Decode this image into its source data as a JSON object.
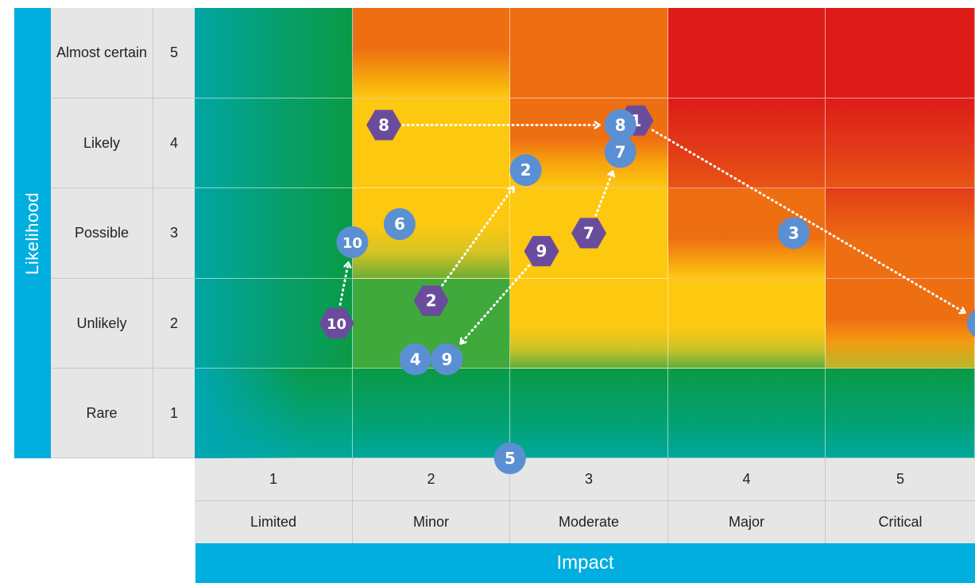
{
  "axes": {
    "likelihood_title": "Likelihood",
    "impact_title": "Impact",
    "rows": [
      {
        "score": "5",
        "label": "Almost certain"
      },
      {
        "score": "4",
        "label": "Likely"
      },
      {
        "score": "3",
        "label": "Possible"
      },
      {
        "score": "2",
        "label": "Unlikely"
      },
      {
        "score": "1",
        "label": "Rare"
      }
    ],
    "columns": [
      {
        "score": "1",
        "label": "Limited"
      },
      {
        "score": "2",
        "label": "Minor"
      },
      {
        "score": "3",
        "label": "Moderate"
      },
      {
        "score": "4",
        "label": "Major"
      },
      {
        "score": "5",
        "label": "Critical"
      }
    ]
  },
  "colors": {
    "accent": "#00AEE0",
    "current_marker": "#5B8FD3",
    "target_marker": "#6A4C9C",
    "green": "#0A9A45",
    "teal": "#00A89C",
    "yellow": "#FDC810",
    "orange": "#EE6E12",
    "red": "#DD1C19"
  },
  "heat_levels": [
    [
      "low",
      "medium",
      "high",
      "very-high",
      "very-high"
    ],
    [
      "low",
      "moderate",
      "high",
      "very-high",
      "very-high"
    ],
    [
      "low",
      "moderate",
      "moderate",
      "high",
      "high"
    ],
    [
      "low",
      "low",
      "moderate",
      "moderate",
      "high"
    ],
    [
      "very-low",
      "very-low",
      "very-low",
      "very-low",
      "very-low"
    ]
  ],
  "risks": [
    {
      "id": "1",
      "current": {
        "impact": 3.3,
        "likelihood": 4.25
      },
      "target": {
        "impact": 5.5,
        "likelihood": 2.0
      }
    },
    {
      "id": "2",
      "current": {
        "impact": 2.0,
        "likelihood": 2.25
      },
      "target": {
        "impact": 2.6,
        "likelihood": 3.7
      }
    },
    {
      "id": "3",
      "current": {
        "impact": 4.3,
        "likelihood": 3.0
      }
    },
    {
      "id": "4",
      "current": {
        "impact": 1.9,
        "likelihood": 1.6
      }
    },
    {
      "id": "5",
      "current": {
        "impact": 2.5,
        "likelihood": 0.5
      }
    },
    {
      "id": "6",
      "current": {
        "impact": 1.8,
        "likelihood": 3.1
      }
    },
    {
      "id": "7",
      "current": {
        "impact": 3.0,
        "likelihood": 3.0
      },
      "target": {
        "impact": 3.2,
        "likelihood": 3.9
      }
    },
    {
      "id": "8",
      "current": {
        "impact": 1.7,
        "likelihood": 4.2
      },
      "target": {
        "impact": 3.2,
        "likelihood": 4.2
      }
    },
    {
      "id": "9",
      "current": {
        "impact": 2.7,
        "likelihood": 2.8
      },
      "target": {
        "impact": 2.1,
        "likelihood": 1.6
      }
    },
    {
      "id": "10",
      "current": {
        "impact": 1.4,
        "likelihood": 2.0
      },
      "target": {
        "impact": 1.5,
        "likelihood": 2.9
      }
    }
  ]
}
